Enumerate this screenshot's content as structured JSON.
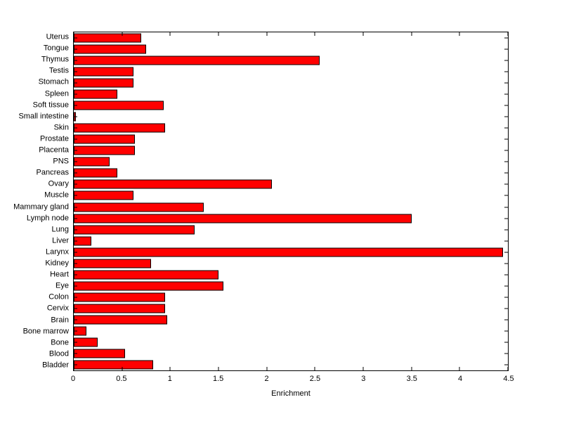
{
  "chart_data": {
    "type": "bar",
    "orientation": "horizontal",
    "title": "",
    "xlabel": "Enrichment",
    "ylabel": "",
    "xlim": [
      0,
      4.5
    ],
    "x_ticks": [
      0,
      0.5,
      1,
      1.5,
      2,
      2.5,
      3,
      3.5,
      4,
      4.5
    ],
    "x_tick_labels": [
      "0",
      "0.5",
      "1",
      "1.5",
      "2",
      "2.5",
      "3",
      "3.5",
      "4",
      "4.5"
    ],
    "grid": false,
    "legend": null,
    "bar_color": "#ff0000",
    "bar_edge_color": "#000000",
    "categories": [
      "Uterus",
      "Tongue",
      "Thymus",
      "Testis",
      "Stomach",
      "Spleen",
      "Soft tissue",
      "Small intestine",
      "Skin",
      "Prostate",
      "Placenta",
      "PNS",
      "Pancreas",
      "Ovary",
      "Muscle",
      "Mammary gland",
      "Lymph node",
      "Lung",
      "Liver",
      "Larynx",
      "Kidney",
      "Heart",
      "Eye",
      "Colon",
      "Cervix",
      "Brain",
      "Bone marrow",
      "Bone",
      "Blood",
      "Bladder"
    ],
    "values": [
      0.7,
      0.75,
      2.55,
      0.62,
      0.62,
      0.45,
      0.93,
      0.02,
      0.95,
      0.63,
      0.63,
      0.37,
      0.45,
      2.05,
      0.62,
      1.35,
      3.5,
      1.25,
      0.18,
      4.45,
      0.8,
      1.5,
      1.55,
      0.95,
      0.95,
      0.97,
      0.13,
      0.25,
      0.53,
      0.82
    ]
  }
}
